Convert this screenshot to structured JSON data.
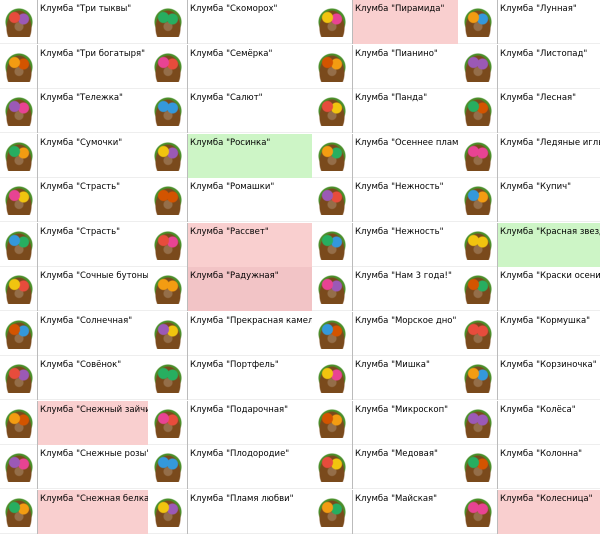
{
  "columns": [
    {
      "items": [
        {
          "label": "Клумба \"Три тыквы\""
        },
        {
          "label": "Клумба \"Три богатыря\""
        },
        {
          "label": "Клумба \"Тележка\""
        },
        {
          "label": "Клумба \"Сумочки\""
        },
        {
          "label": "Клумба \"Страсть\""
        },
        {
          "label": "Клумба \"Страсть\""
        },
        {
          "label": "Клумба \"Сочные бутоны\""
        },
        {
          "label": "Клумба \"Солнечная\""
        },
        {
          "label": "Клумба \"Совёнок\""
        },
        {
          "label": "Клумба \"Снежный зайчик\"",
          "highlight": "#f9cfcf"
        },
        {
          "label": "Клумба \"Снежные розы\""
        },
        {
          "label": "Клумба \"Снежная белка\"",
          "highlight": "#f9cfcf"
        }
      ]
    },
    {
      "items": [
        {
          "label": "Клумба \"Скоморох\""
        },
        {
          "label": "Клумба \"Семёрка\""
        },
        {
          "label": "Клумба \"Салют\""
        },
        {
          "label": "Клумба \"Росинка\"",
          "highlight": "#cdf5c6"
        },
        {
          "label": "Клумба \"Ромашки\""
        },
        {
          "label": "Клумба \"Рассвет\"",
          "highlight": "#f9cfcf"
        },
        {
          "label": "Клумба \"Радужная\"",
          "highlight": "#f2c4c6"
        },
        {
          "label": "Клумба \"Прекрасная камелия\""
        },
        {
          "label": "Клумба \"Портфель\""
        },
        {
          "label": "Клумба \"Подарочная\""
        },
        {
          "label": "Клумба \"Плодородие\""
        },
        {
          "label": "Клумба \"Пламя любви\""
        }
      ]
    },
    {
      "items": [
        {
          "label": "Клумба \"Пирамида\"",
          "highlight": "#f9cfcf"
        },
        {
          "label": "Клумба \"Пианино\""
        },
        {
          "label": "Клумба \"Панда\""
        },
        {
          "label": "Клумба \"Осеннее пламя\""
        },
        {
          "label": "Клумба \"Нежность\""
        },
        {
          "label": "Клумба \"Нежность\""
        },
        {
          "label": "Клумба \"Нам 3 года!\""
        },
        {
          "label": "Клумба \"Морское дно\""
        },
        {
          "label": "Клумба \"Мишка\""
        },
        {
          "label": "Клумба \"Микроскоп\""
        },
        {
          "label": "Клумба \"Медовая\""
        },
        {
          "label": "Клумба \"Майская\""
        }
      ]
    },
    {
      "items": [
        {
          "label": "Клумба \"Лунная\""
        },
        {
          "label": "Клумба \"Листопад\""
        },
        {
          "label": "Клумба \"Лесная\""
        },
        {
          "label": "Клумба \"Ледяные иглы\""
        },
        {
          "label": "Клумба \"Купич\""
        },
        {
          "label": "Клумба \"Красная звезда\"",
          "highlight": "#cdf5c6"
        },
        {
          "label": "Клумба \"Краски осени\""
        },
        {
          "label": "Клумба \"Кормушка\""
        },
        {
          "label": "Клумба \"Корзиночка\""
        },
        {
          "label": "Клумба \"Колёса\""
        },
        {
          "label": "Клумба \"Колонна\""
        },
        {
          "label": "Клумба \"Колесница\"",
          "highlight": "#f9cfcf"
        }
      ]
    }
  ]
}
